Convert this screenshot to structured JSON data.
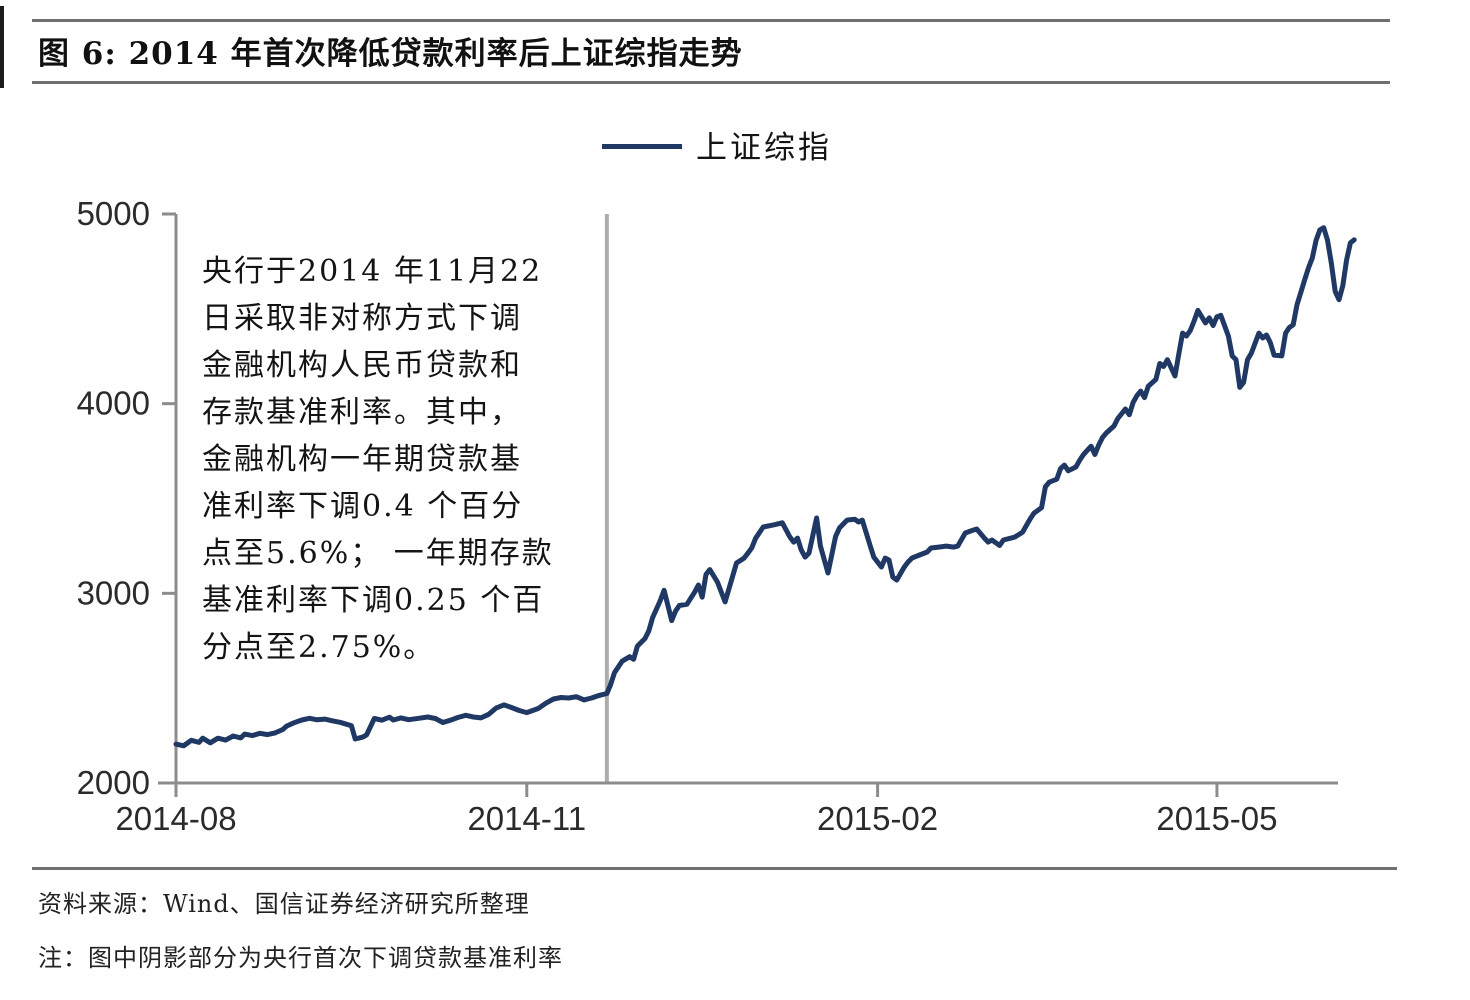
{
  "figure": {
    "title": "图 6: 2014 年首次降低贷款利率后上证综指走势",
    "source": "资料来源：Wind、国信证券经济研究所整理",
    "note": "注：图中阴影部分为央行首次下调贷款基准利率"
  },
  "chart_data": {
    "type": "line",
    "title": "2014 年首次降低贷款利率后上证综指走势",
    "legend_position": "top-center",
    "grid": false,
    "x_axis": {
      "tick_labels": [
        "2014-08",
        "2014-11",
        "2015-02",
        "2015-05"
      ],
      "tick_dates": [
        "2014-08-01",
        "2014-11-01",
        "2015-02-01",
        "2015-05-01"
      ],
      "range": [
        "2014-08-01",
        "2015-06-07"
      ]
    },
    "y_axis": {
      "ticks": [
        2000,
        3000,
        4000,
        5000
      ],
      "range": [
        2000,
        5000
      ]
    },
    "event": {
      "date": "2014-11-22",
      "description": "央行首次下调贷款基准利率",
      "color": "#adadad"
    },
    "annotation": {
      "lines": [
        "央行于2014 年11月22",
        "日采取非对称方式下调",
        "金融机构人民币贷款和",
        "存款基准利率。其中，",
        "金融机构一年期贷款基",
        "准利率下调0.4 个百分",
        "点至5.6%； 一年期存款",
        "基准利率下调0.25 个百",
        "分点至2.75%。"
      ]
    },
    "colors": {
      "series": "#1f3864",
      "axis": "#8c8c8c",
      "event_line": "#adadad"
    },
    "series": [
      {
        "name": "上证综指",
        "color": "#1f3864",
        "points": [
          [
            "2014-08-01",
            2205
          ],
          [
            "2014-08-03",
            2196
          ],
          [
            "2014-08-05",
            2225
          ],
          [
            "2014-08-07",
            2214
          ],
          [
            "2014-08-08",
            2236
          ],
          [
            "2014-08-10",
            2212
          ],
          [
            "2014-08-12",
            2236
          ],
          [
            "2014-08-14",
            2226
          ],
          [
            "2014-08-16",
            2248
          ],
          [
            "2014-08-18",
            2238
          ],
          [
            "2014-08-19",
            2258
          ],
          [
            "2014-08-21",
            2250
          ],
          [
            "2014-08-23",
            2262
          ],
          [
            "2014-08-25",
            2255
          ],
          [
            "2014-08-27",
            2264
          ],
          [
            "2014-08-29",
            2282
          ],
          [
            "2014-08-30",
            2300
          ],
          [
            "2014-09-01",
            2318
          ],
          [
            "2014-09-03",
            2332
          ],
          [
            "2014-09-05",
            2341
          ],
          [
            "2014-09-07",
            2333
          ],
          [
            "2014-09-09",
            2337
          ],
          [
            "2014-09-11",
            2328
          ],
          [
            "2014-09-13",
            2320
          ],
          [
            "2014-09-16",
            2302
          ],
          [
            "2014-09-17",
            2232
          ],
          [
            "2014-09-19",
            2242
          ],
          [
            "2014-09-20",
            2254
          ],
          [
            "2014-09-22",
            2340
          ],
          [
            "2014-09-24",
            2331
          ],
          [
            "2014-09-26",
            2347
          ],
          [
            "2014-09-27",
            2332
          ],
          [
            "2014-09-29",
            2343
          ],
          [
            "2014-10-01",
            2334
          ],
          [
            "2014-10-03",
            2339
          ],
          [
            "2014-10-06",
            2348
          ],
          [
            "2014-10-08",
            2340
          ],
          [
            "2014-10-10",
            2319
          ],
          [
            "2014-10-12",
            2331
          ],
          [
            "2014-10-14",
            2346
          ],
          [
            "2014-10-16",
            2357
          ],
          [
            "2014-10-18",
            2348
          ],
          [
            "2014-10-20",
            2343
          ],
          [
            "2014-10-22",
            2362
          ],
          [
            "2014-10-24",
            2396
          ],
          [
            "2014-10-26",
            2412
          ],
          [
            "2014-10-28",
            2398
          ],
          [
            "2014-10-30",
            2382
          ],
          [
            "2014-11-01",
            2371
          ],
          [
            "2014-11-04",
            2393
          ],
          [
            "2014-11-06",
            2421
          ],
          [
            "2014-11-08",
            2443
          ],
          [
            "2014-11-10",
            2451
          ],
          [
            "2014-11-12",
            2448
          ],
          [
            "2014-11-14",
            2455
          ],
          [
            "2014-11-16",
            2438
          ],
          [
            "2014-11-18",
            2448
          ],
          [
            "2014-11-20",
            2462
          ],
          [
            "2014-11-22",
            2472
          ],
          [
            "2014-11-23",
            2520
          ],
          [
            "2014-11-24",
            2582
          ],
          [
            "2014-11-26",
            2642
          ],
          [
            "2014-11-28",
            2666
          ],
          [
            "2014-11-29",
            2652
          ],
          [
            "2014-11-30",
            2722
          ],
          [
            "2014-12-02",
            2762
          ],
          [
            "2014-12-03",
            2802
          ],
          [
            "2014-12-04",
            2872
          ],
          [
            "2014-12-06",
            2962
          ],
          [
            "2014-12-07",
            3016
          ],
          [
            "2014-12-09",
            2856
          ],
          [
            "2014-12-10",
            2906
          ],
          [
            "2014-12-11",
            2936
          ],
          [
            "2014-12-13",
            2942
          ],
          [
            "2014-12-15",
            3006
          ],
          [
            "2014-12-16",
            3044
          ],
          [
            "2014-12-17",
            2980
          ],
          [
            "2014-12-18",
            3100
          ],
          [
            "2014-12-19",
            3125
          ],
          [
            "2014-12-21",
            3060
          ],
          [
            "2014-12-23",
            2955
          ],
          [
            "2014-12-26",
            3160
          ],
          [
            "2014-12-28",
            3186
          ],
          [
            "2014-12-29",
            3212
          ],
          [
            "2014-12-30",
            3240
          ],
          [
            "2014-12-31",
            3290
          ],
          [
            "2015-01-02",
            3350
          ],
          [
            "2015-01-05",
            3362
          ],
          [
            "2015-01-07",
            3372
          ],
          [
            "2015-01-09",
            3297
          ],
          [
            "2015-01-10",
            3270
          ],
          [
            "2015-01-11",
            3291
          ],
          [
            "2015-01-12",
            3228
          ],
          [
            "2015-01-13",
            3191
          ],
          [
            "2015-01-14",
            3212
          ],
          [
            "2015-01-16",
            3397
          ],
          [
            "2015-01-17",
            3250
          ],
          [
            "2015-01-19",
            3107
          ],
          [
            "2015-01-21",
            3300
          ],
          [
            "2015-01-22",
            3345
          ],
          [
            "2015-01-24",
            3386
          ],
          [
            "2015-01-26",
            3391
          ],
          [
            "2015-01-27",
            3376
          ],
          [
            "2015-01-28",
            3386
          ],
          [
            "2015-01-30",
            3254
          ],
          [
            "2015-01-31",
            3191
          ],
          [
            "2015-02-02",
            3139
          ],
          [
            "2015-02-03",
            3186
          ],
          [
            "2015-02-04",
            3175
          ],
          [
            "2015-02-05",
            3086
          ],
          [
            "2015-02-06",
            3070
          ],
          [
            "2015-02-08",
            3139
          ],
          [
            "2015-02-09",
            3165
          ],
          [
            "2015-02-10",
            3186
          ],
          [
            "2015-02-12",
            3202
          ],
          [
            "2015-02-14",
            3218
          ],
          [
            "2015-02-15",
            3239
          ],
          [
            "2015-02-17",
            3244
          ],
          [
            "2015-02-19",
            3249
          ],
          [
            "2015-02-21",
            3244
          ],
          [
            "2015-02-22",
            3249
          ],
          [
            "2015-02-24",
            3318
          ],
          [
            "2015-02-26",
            3333
          ],
          [
            "2015-02-27",
            3339
          ],
          [
            "2015-03-01",
            3291
          ],
          [
            "2015-03-02",
            3270
          ],
          [
            "2015-03-03",
            3281
          ],
          [
            "2015-03-05",
            3252
          ],
          [
            "2015-03-06",
            3281
          ],
          [
            "2015-03-08",
            3291
          ],
          [
            "2015-03-09",
            3297
          ],
          [
            "2015-03-11",
            3322
          ],
          [
            "2015-03-13",
            3392
          ],
          [
            "2015-03-14",
            3422
          ],
          [
            "2015-03-16",
            3452
          ],
          [
            "2015-03-17",
            3562
          ],
          [
            "2015-03-18",
            3586
          ],
          [
            "2015-03-20",
            3602
          ],
          [
            "2015-03-21",
            3658
          ],
          [
            "2015-03-22",
            3676
          ],
          [
            "2015-03-23",
            3646
          ],
          [
            "2015-03-25",
            3666
          ],
          [
            "2015-03-26",
            3702
          ],
          [
            "2015-03-27",
            3732
          ],
          [
            "2015-03-29",
            3776
          ],
          [
            "2015-03-30",
            3732
          ],
          [
            "2015-03-31",
            3782
          ],
          [
            "2015-04-01",
            3822
          ],
          [
            "2015-04-02",
            3846
          ],
          [
            "2015-04-04",
            3882
          ],
          [
            "2015-04-05",
            3922
          ],
          [
            "2015-04-07",
            3972
          ],
          [
            "2015-04-08",
            3942
          ],
          [
            "2015-04-09",
            4006
          ],
          [
            "2015-04-10",
            4042
          ],
          [
            "2015-04-11",
            4066
          ],
          [
            "2015-04-12",
            4032
          ],
          [
            "2015-04-13",
            4092
          ],
          [
            "2015-04-15",
            4128
          ],
          [
            "2015-04-16",
            4212
          ],
          [
            "2015-04-17",
            4196
          ],
          [
            "2015-04-18",
            4232
          ],
          [
            "2015-04-20",
            4146
          ],
          [
            "2015-04-21",
            4262
          ],
          [
            "2015-04-22",
            4372
          ],
          [
            "2015-04-23",
            4356
          ],
          [
            "2015-04-24",
            4386
          ],
          [
            "2015-04-25",
            4436
          ],
          [
            "2015-04-26",
            4492
          ],
          [
            "2015-04-28",
            4426
          ],
          [
            "2015-04-29",
            4452
          ],
          [
            "2015-04-30",
            4412
          ],
          [
            "2015-05-01",
            4458
          ],
          [
            "2015-05-02",
            4466
          ],
          [
            "2015-05-04",
            4356
          ],
          [
            "2015-05-05",
            4252
          ],
          [
            "2015-05-06",
            4232
          ],
          [
            "2015-05-07",
            4086
          ],
          [
            "2015-05-08",
            4112
          ],
          [
            "2015-05-09",
            4232
          ],
          [
            "2015-05-10",
            4266
          ],
          [
            "2015-05-12",
            4372
          ],
          [
            "2015-05-13",
            4346
          ],
          [
            "2015-05-14",
            4362
          ],
          [
            "2015-05-15",
            4322
          ],
          [
            "2015-05-16",
            4256
          ],
          [
            "2015-05-18",
            4252
          ],
          [
            "2015-05-19",
            4372
          ],
          [
            "2015-05-20",
            4402
          ],
          [
            "2015-05-21",
            4416
          ],
          [
            "2015-05-22",
            4522
          ],
          [
            "2015-05-23",
            4586
          ],
          [
            "2015-05-24",
            4652
          ],
          [
            "2015-05-25",
            4716
          ],
          [
            "2015-05-26",
            4768
          ],
          [
            "2015-05-27",
            4862
          ],
          [
            "2015-05-28",
            4916
          ],
          [
            "2015-05-29",
            4928
          ],
          [
            "2015-05-30",
            4862
          ],
          [
            "2015-05-31",
            4742
          ],
          [
            "2015-06-01",
            4592
          ],
          [
            "2015-06-02",
            4548
          ],
          [
            "2015-06-03",
            4622
          ],
          [
            "2015-06-04",
            4758
          ],
          [
            "2015-06-05",
            4848
          ],
          [
            "2015-06-06",
            4864
          ]
        ]
      }
    ]
  }
}
